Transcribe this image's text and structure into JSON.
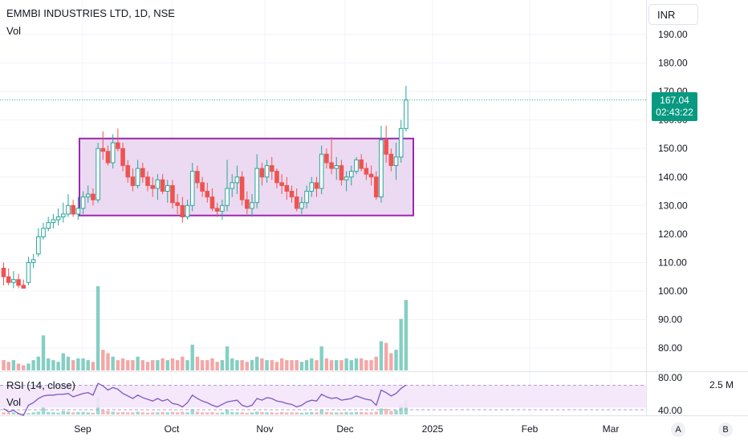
{
  "header": {
    "symbol_line": "EMMBI INDUSTRIES LTD, 1D, NSE",
    "vol_label": "Vol"
  },
  "currency": "INR",
  "price_tag": {
    "price": "167.04",
    "countdown": "02:43:22"
  },
  "rsi": {
    "label": "RSI (14, close)",
    "vol_label": "Vol",
    "axis": [
      "80.00",
      "40.00"
    ],
    "band": [
      30,
      70
    ]
  },
  "vol_axis_label": "2.5 M",
  "scale_buttons": [
    "A",
    "B"
  ],
  "colors": {
    "up": "#26a69a",
    "down": "#ef5350",
    "up_vol": "#83cfc3",
    "down_vol": "#f5a6a6",
    "box_stroke": "#9c27b0",
    "box_fill": "#e9d3f0",
    "rsi_line": "#7e57c2",
    "tag_bg": "#089981"
  },
  "chart_data": {
    "type": "candlestick",
    "y_axis": {
      "ticks": [
        "190.00",
        "180.00",
        "170.00",
        "160.00",
        "150.00",
        "140.00",
        "130.00",
        "120.00",
        "110.00",
        "100.00",
        "90.00",
        "80.00"
      ]
    },
    "x_axis": {
      "ticks": [
        "Sep",
        "Oct",
        "Nov",
        "Dec",
        "2025",
        "Feb",
        "Mar"
      ]
    },
    "last_price": 167.04,
    "range_box": {
      "top": 153.5,
      "bottom": 126.5
    },
    "candles": [
      [
        108,
        110,
        102,
        105
      ],
      [
        105,
        108,
        102,
        103
      ],
      [
        103,
        107,
        101,
        104
      ],
      [
        104,
        106,
        101,
        102
      ],
      [
        102,
        104,
        101,
        101
      ],
      [
        103,
        112,
        102,
        110
      ],
      [
        110,
        113,
        108,
        111
      ],
      [
        113,
        122,
        112,
        119
      ],
      [
        119,
        124,
        118,
        122
      ],
      [
        122,
        126,
        121,
        124
      ],
      [
        124,
        127,
        122,
        125
      ],
      [
        125,
        129,
        123,
        126
      ],
      [
        126,
        131,
        124,
        127
      ],
      [
        127,
        134,
        126,
        130
      ],
      [
        130,
        132,
        126,
        127
      ],
      [
        127,
        133,
        125,
        129
      ],
      [
        129,
        135,
        127,
        133
      ],
      [
        133,
        137,
        131,
        134
      ],
      [
        134,
        136,
        130,
        132
      ],
      [
        132,
        152,
        131,
        150
      ],
      [
        150,
        156,
        146,
        149
      ],
      [
        149,
        151,
        144,
        145
      ],
      [
        145,
        155,
        143,
        152
      ],
      [
        152,
        157,
        149,
        150
      ],
      [
        150,
        152,
        142,
        144
      ],
      [
        144,
        146,
        138,
        140
      ],
      [
        140,
        143,
        135,
        137
      ],
      [
        137,
        146,
        136,
        143
      ],
      [
        143,
        145,
        138,
        140
      ],
      [
        140,
        142,
        135,
        137
      ],
      [
        137,
        140,
        133,
        136
      ],
      [
        136,
        141,
        132,
        139
      ],
      [
        139,
        141,
        134,
        135
      ],
      [
        135,
        139,
        131,
        137
      ],
      [
        137,
        139,
        129,
        131
      ],
      [
        131,
        134,
        127,
        130
      ],
      [
        130,
        133,
        124,
        126
      ],
      [
        126,
        132,
        125,
        130
      ],
      [
        130,
        145,
        128,
        142
      ],
      [
        142,
        144,
        136,
        138
      ],
      [
        138,
        140,
        133,
        135
      ],
      [
        135,
        138,
        131,
        133
      ],
      [
        133,
        136,
        128,
        129
      ],
      [
        129,
        131,
        126,
        128
      ],
      [
        128,
        132,
        125,
        130
      ],
      [
        130,
        146,
        128,
        136
      ],
      [
        136,
        141,
        133,
        138
      ],
      [
        138,
        144,
        134,
        140
      ],
      [
        140,
        142,
        130,
        132
      ],
      [
        132,
        135,
        127,
        129
      ],
      [
        129,
        134,
        126,
        131
      ],
      [
        131,
        148,
        129,
        143
      ],
      [
        143,
        145,
        137,
        140
      ],
      [
        140,
        146,
        138,
        144
      ],
      [
        144,
        147,
        139,
        142
      ],
      [
        142,
        143,
        136,
        138
      ],
      [
        138,
        141,
        134,
        137
      ],
      [
        137,
        140,
        132,
        135
      ],
      [
        135,
        137,
        131,
        133
      ],
      [
        133,
        136,
        128,
        129
      ],
      [
        129,
        133,
        127,
        131
      ],
      [
        131,
        137,
        129,
        135
      ],
      [
        135,
        140,
        133,
        138
      ],
      [
        138,
        140,
        133,
        136
      ],
      [
        136,
        151,
        134,
        148
      ],
      [
        148,
        150,
        143,
        145
      ],
      [
        145,
        154,
        141,
        143
      ],
      [
        143,
        147,
        139,
        144
      ],
      [
        144,
        146,
        137,
        139
      ],
      [
        139,
        142,
        135,
        140
      ],
      [
        140,
        144,
        137,
        142
      ],
      [
        142,
        147,
        141,
        146
      ],
      [
        146,
        148,
        142,
        143
      ],
      [
        143,
        145,
        139,
        141
      ],
      [
        141,
        144,
        137,
        140
      ],
      [
        140,
        142,
        132,
        133
      ],
      [
        133,
        158,
        131,
        153
      ],
      [
        153,
        158,
        145,
        148
      ],
      [
        148,
        150,
        142,
        144
      ],
      [
        144,
        152,
        139,
        147
      ],
      [
        147,
        160,
        145,
        157
      ],
      [
        157,
        172,
        156,
        167
      ]
    ],
    "volume_scale_max": 2.8,
    "volumes": [
      0.3,
      0.25,
      0.3,
      0.2,
      0.15,
      0.2,
      0.3,
      0.4,
      1.02,
      0.35,
      0.3,
      0.25,
      0.5,
      0.4,
      0.3,
      0.35,
      0.35,
      0.3,
      0.25,
      2.45,
      0.6,
      0.5,
      0.4,
      0.3,
      0.35,
      0.3,
      0.3,
      0.4,
      0.3,
      0.25,
      0.3,
      0.3,
      0.35,
      0.3,
      0.35,
      0.3,
      0.4,
      0.3,
      0.75,
      0.4,
      0.3,
      0.3,
      0.35,
      0.25,
      0.3,
      0.7,
      0.35,
      0.3,
      0.3,
      0.25,
      0.3,
      0.4,
      0.35,
      0.3,
      0.3,
      0.25,
      0.35,
      0.3,
      0.3,
      0.3,
      0.25,
      0.3,
      0.35,
      0.3,
      0.7,
      0.35,
      0.3,
      0.3,
      0.3,
      0.35,
      0.3,
      0.35,
      0.35,
      0.3,
      0.3,
      0.4,
      0.85,
      0.8,
      0.5,
      0.6,
      1.5,
      2.05
    ],
    "rsi_values": [
      48,
      44,
      46,
      42,
      40,
      52,
      55,
      60,
      63,
      64,
      64,
      65,
      65,
      66,
      62,
      64,
      66,
      67,
      64,
      78,
      75,
      70,
      73,
      71,
      66,
      63,
      60,
      64,
      61,
      59,
      57,
      60,
      57,
      59,
      54,
      53,
      50,
      55,
      64,
      60,
      57,
      55,
      52,
      50,
      53,
      56,
      57,
      58,
      52,
      50,
      52,
      60,
      58,
      61,
      60,
      57,
      56,
      54,
      53,
      50,
      52,
      56,
      58,
      57,
      65,
      62,
      60,
      61,
      58,
      59,
      60,
      63,
      61,
      59,
      58,
      52,
      70,
      67,
      63,
      66,
      72,
      76
    ]
  }
}
